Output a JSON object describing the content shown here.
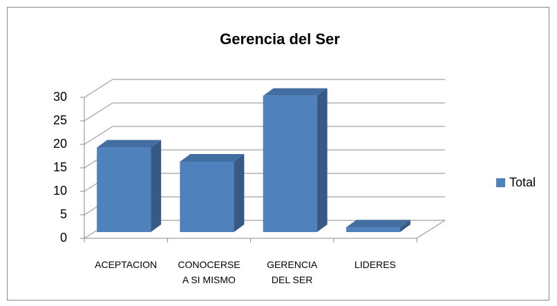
{
  "chart_data": {
    "type": "bar3d",
    "title": "Gerencia del Ser",
    "categories": [
      "ACEPTACION",
      "CONOCERSE A SI MISMO",
      "GERENCIA DEL SER",
      "LIDERES"
    ],
    "series": [
      {
        "name": "Total",
        "color": "#4f81bd",
        "values": [
          18,
          15,
          29,
          1
        ]
      }
    ],
    "ylim": [
      0,
      30
    ],
    "yticks": [
      0,
      5,
      10,
      15,
      20,
      25,
      30
    ],
    "grid": true,
    "legend": "right"
  }
}
